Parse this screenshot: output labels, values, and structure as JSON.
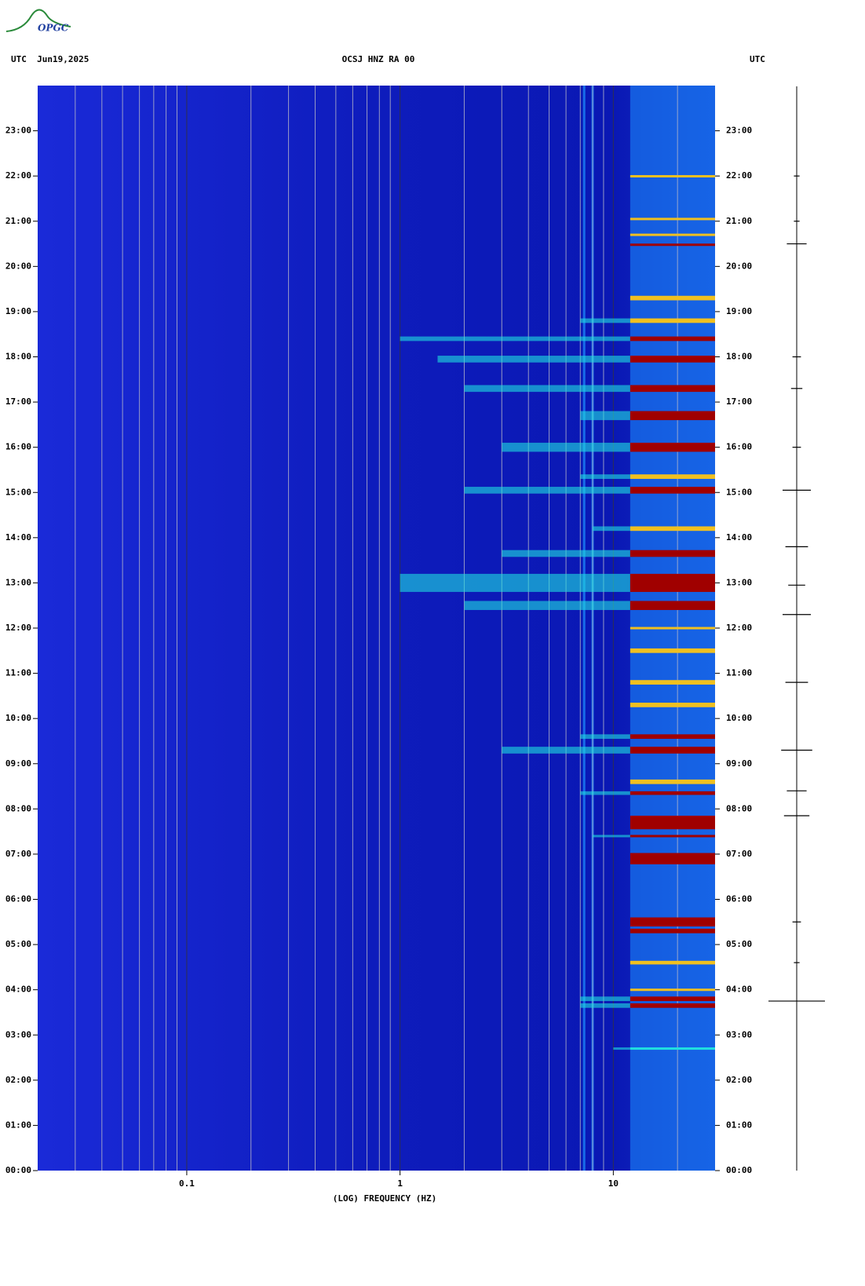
{
  "chart_data": {
    "type": "spectrogram",
    "logo": "OPGC",
    "header_left": "UTC  Jun19,2025",
    "title": "OCSJ HNZ RA 00",
    "header_right": "UTC",
    "xlabel": "(LOG) FREQUENCY (HZ)",
    "log_x": true,
    "xlim": [
      0.02,
      30
    ],
    "xticks": [
      0.1,
      1,
      10
    ],
    "xgrid": [
      0.03,
      0.04,
      0.05,
      0.06,
      0.07,
      0.08,
      0.09,
      0.2,
      0.3,
      0.4,
      0.5,
      0.6,
      0.7,
      0.8,
      0.9,
      2,
      3,
      4,
      5,
      6,
      7,
      8,
      9,
      20
    ],
    "ylim": [
      0,
      24
    ],
    "yticks": [
      {
        "value": 0,
        "label": "00:00"
      },
      {
        "value": 1,
        "label": "01:00"
      },
      {
        "value": 2,
        "label": "02:00"
      },
      {
        "value": 3,
        "label": "03:00"
      },
      {
        "value": 4,
        "label": "04:00"
      },
      {
        "value": 5,
        "label": "05:00"
      },
      {
        "value": 6,
        "label": "06:00"
      },
      {
        "value": 7,
        "label": "07:00"
      },
      {
        "value": 8,
        "label": "08:00"
      },
      {
        "value": 9,
        "label": "09:00"
      },
      {
        "value": 10,
        "label": "10:00"
      },
      {
        "value": 11,
        "label": "11:00"
      },
      {
        "value": 12,
        "label": "12:00"
      },
      {
        "value": 13,
        "label": "13:00"
      },
      {
        "value": 14,
        "label": "14:00"
      },
      {
        "value": 15,
        "label": "15:00"
      },
      {
        "value": 16,
        "label": "16:00"
      },
      {
        "value": 17,
        "label": "17:00"
      },
      {
        "value": 18,
        "label": "18:00"
      },
      {
        "value": 19,
        "label": "19:00"
      },
      {
        "value": 20,
        "label": "20:00"
      },
      {
        "value": 21,
        "label": "21:00"
      },
      {
        "value": 22,
        "label": "22:00"
      },
      {
        "value": 23,
        "label": "23:00"
      }
    ],
    "noise_band": [
      12,
      30
    ],
    "persistent_lines": [
      7.3,
      8.0
    ],
    "level_colors": [
      "#1e90ff",
      "#20e0e0",
      "#f0c020",
      "#a00000"
    ],
    "events": [
      {
        "time": 2.7,
        "duration": 0.05,
        "fmin": 10,
        "level": 1
      },
      {
        "time": 3.65,
        "duration": 0.1,
        "fmin": 7,
        "level": 3
      },
      {
        "time": 3.8,
        "duration": 0.1,
        "fmin": 7,
        "level": 3
      },
      {
        "time": 4.0,
        "duration": 0.05,
        "fmin": 12,
        "level": 2
      },
      {
        "time": 4.6,
        "duration": 0.08,
        "fmin": 12,
        "level": 2
      },
      {
        "time": 5.3,
        "duration": 0.1,
        "fmin": 12,
        "level": 3
      },
      {
        "time": 5.5,
        "duration": 0.2,
        "fmin": 12,
        "level": 3
      },
      {
        "time": 6.9,
        "duration": 0.25,
        "fmin": 12,
        "level": 3
      },
      {
        "time": 7.4,
        "duration": 0.05,
        "fmin": 8,
        "level": 3
      },
      {
        "time": 7.7,
        "duration": 0.3,
        "fmin": 12,
        "level": 3
      },
      {
        "time": 8.35,
        "duration": 0.08,
        "fmin": 7,
        "level": 3
      },
      {
        "time": 8.6,
        "duration": 0.1,
        "fmin": 12,
        "level": 2
      },
      {
        "time": 9.3,
        "duration": 0.15,
        "fmin": 3,
        "level": 3
      },
      {
        "time": 9.6,
        "duration": 0.1,
        "fmin": 7,
        "level": 3
      },
      {
        "time": 10.3,
        "duration": 0.1,
        "fmin": 12,
        "level": 2
      },
      {
        "time": 10.8,
        "duration": 0.1,
        "fmin": 12,
        "level": 2
      },
      {
        "time": 11.5,
        "duration": 0.1,
        "fmin": 12,
        "level": 2
      },
      {
        "time": 12.0,
        "duration": 0.05,
        "fmin": 12,
        "level": 2
      },
      {
        "time": 12.5,
        "duration": 0.2,
        "fmin": 2,
        "level": 3
      },
      {
        "time": 13.0,
        "duration": 0.4,
        "fmin": 1,
        "level": 3
      },
      {
        "time": 13.65,
        "duration": 0.15,
        "fmin": 3,
        "level": 3
      },
      {
        "time": 14.2,
        "duration": 0.1,
        "fmin": 8,
        "level": 2
      },
      {
        "time": 15.05,
        "duration": 0.15,
        "fmin": 2,
        "level": 3
      },
      {
        "time": 15.35,
        "duration": 0.1,
        "fmin": 7,
        "level": 2
      },
      {
        "time": 16.0,
        "duration": 0.2,
        "fmin": 3,
        "level": 3
      },
      {
        "time": 16.7,
        "duration": 0.2,
        "fmin": 7,
        "level": 3
      },
      {
        "time": 17.3,
        "duration": 0.15,
        "fmin": 2,
        "level": 3
      },
      {
        "time": 17.95,
        "duration": 0.15,
        "fmin": 1.5,
        "level": 3
      },
      {
        "time": 18.4,
        "duration": 0.1,
        "fmin": 1,
        "level": 3
      },
      {
        "time": 18.8,
        "duration": 0.1,
        "fmin": 7,
        "level": 2
      },
      {
        "time": 19.3,
        "duration": 0.1,
        "fmin": 12,
        "level": 2
      },
      {
        "time": 20.48,
        "duration": 0.05,
        "fmin": 12,
        "level": 3
      },
      {
        "time": 20.7,
        "duration": 0.05,
        "fmin": 12,
        "level": 2
      },
      {
        "time": 21.05,
        "duration": 0.05,
        "fmin": 12,
        "level": 2
      },
      {
        "time": 22.0,
        "duration": 0.04,
        "fmin": 12,
        "level": 2
      }
    ],
    "trace_spikes": [
      {
        "time": 3.75,
        "amplitude": 1.0
      },
      {
        "time": 4.6,
        "amplitude": 0.1
      },
      {
        "time": 5.5,
        "amplitude": 0.15
      },
      {
        "time": 7.85,
        "amplitude": 0.45
      },
      {
        "time": 8.4,
        "amplitude": 0.35
      },
      {
        "time": 9.3,
        "amplitude": 0.55
      },
      {
        "time": 10.8,
        "amplitude": 0.4
      },
      {
        "time": 12.3,
        "amplitude": 0.5
      },
      {
        "time": 12.95,
        "amplitude": 0.3
      },
      {
        "time": 13.8,
        "amplitude": 0.4
      },
      {
        "time": 15.05,
        "amplitude": 0.5
      },
      {
        "time": 16.0,
        "amplitude": 0.15
      },
      {
        "time": 17.3,
        "amplitude": 0.2
      },
      {
        "time": 18.0,
        "amplitude": 0.15
      },
      {
        "time": 20.5,
        "amplitude": 0.35
      },
      {
        "time": 21.0,
        "amplitude": 0.1
      },
      {
        "time": 22.0,
        "amplitude": 0.1
      }
    ]
  }
}
